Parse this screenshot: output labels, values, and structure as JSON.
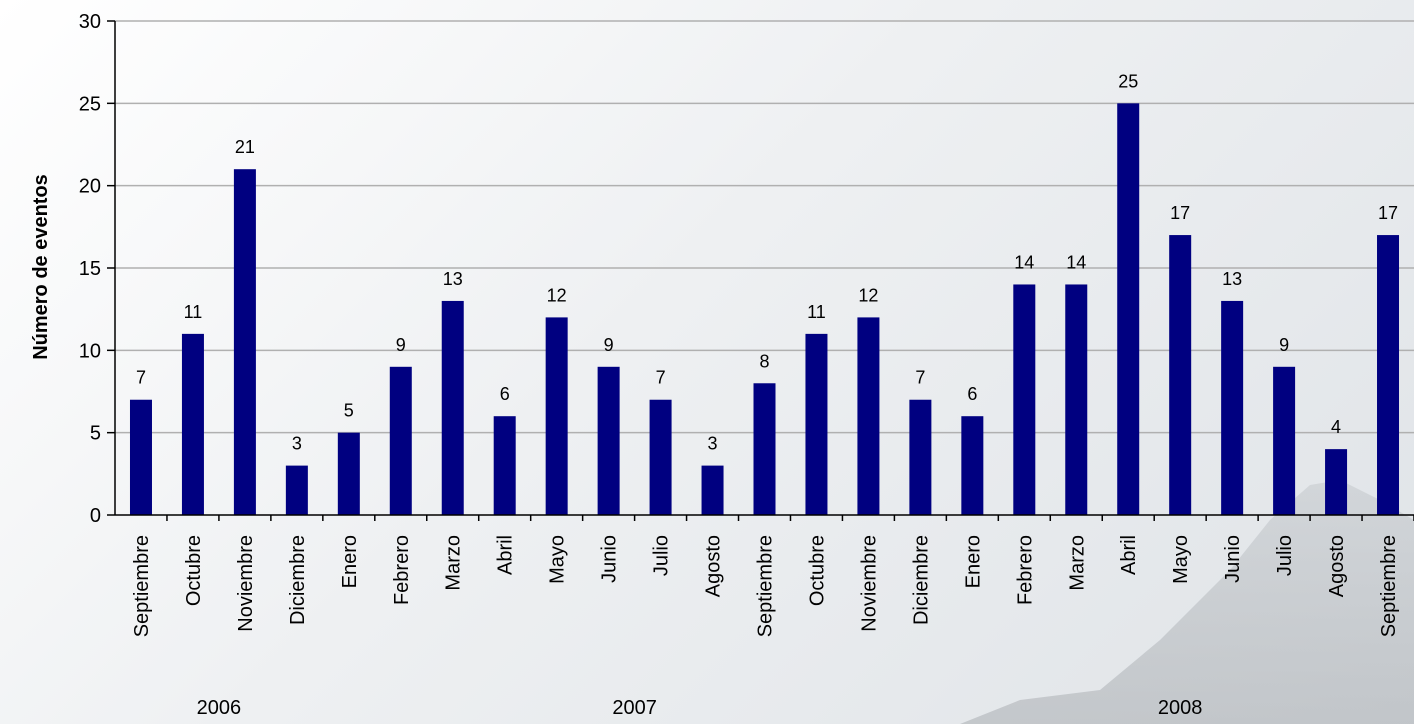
{
  "chart_data": {
    "type": "bar",
    "ylabel": "Número de eventos",
    "xlabel": "",
    "ylim": [
      0,
      30
    ],
    "yticks": [
      0,
      5,
      10,
      15,
      20,
      25,
      30
    ],
    "grid": true,
    "categories": [
      "Septiembre",
      "Octubre",
      "Noviembre",
      "Diciembre",
      "Enero",
      "Febrero",
      "Marzo",
      "Abril",
      "Mayo",
      "Junio",
      "Julio",
      "Agosto",
      "Septiembre",
      "Octubre",
      "Noviembre",
      "Diciembre",
      "Enero",
      "Febrero",
      "Marzo",
      "Abril",
      "Mayo",
      "Junio",
      "Julio",
      "Agosto",
      "Septiembre"
    ],
    "values": [
      7,
      11,
      21,
      3,
      5,
      9,
      13,
      6,
      12,
      9,
      7,
      3,
      8,
      11,
      12,
      7,
      6,
      14,
      14,
      25,
      17,
      13,
      9,
      4,
      17
    ],
    "year_groups": [
      {
        "label": "2006",
        "start": 0,
        "end": 3
      },
      {
        "label": "2007",
        "start": 4,
        "end": 15
      },
      {
        "label": "2008",
        "start": 16,
        "end": 24
      }
    ],
    "bar_color": "#000080",
    "grid_color": "#b0b0b0",
    "axis_color": "#000000"
  }
}
